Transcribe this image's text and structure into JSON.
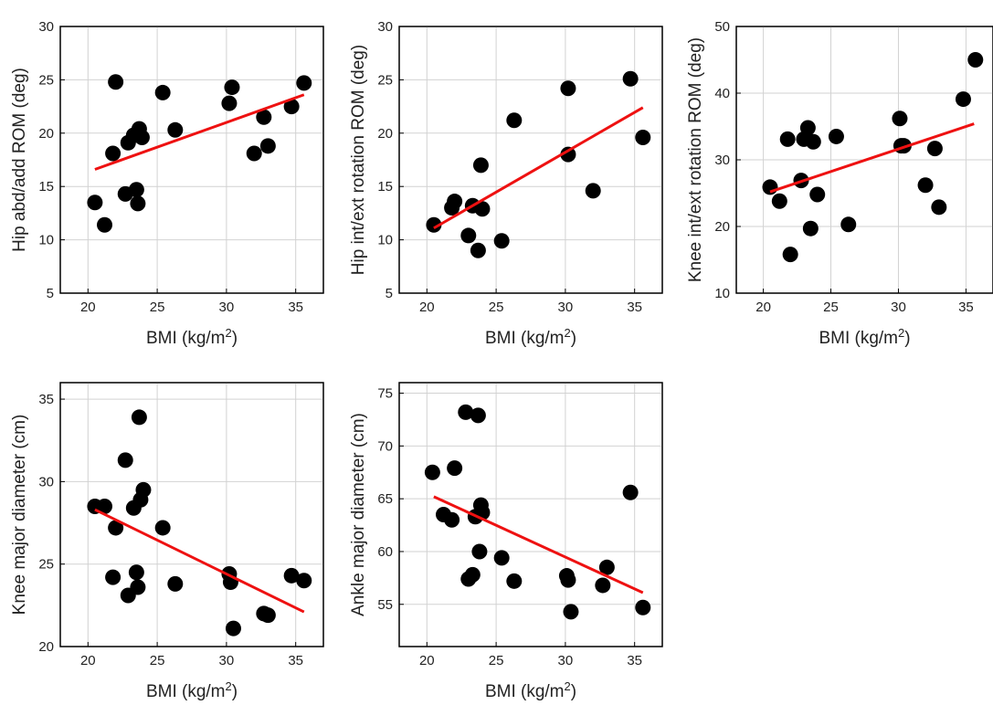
{
  "style": {
    "point_color": "#000000",
    "fit_color": "#ee1111",
    "grid_color": "#d2d2d2"
  },
  "chart_data": [
    {
      "type": "scatter",
      "xlabel": "BMI (kg/m",
      "xlabel_sup": "2",
      "xlabel_tail": ")",
      "ylabel": "Hip abd/add ROM (deg)",
      "xlim": [
        18,
        37
      ],
      "ylim": [
        5,
        30
      ],
      "xticks": [
        20,
        25,
        30,
        35
      ],
      "yticks": [
        5,
        10,
        15,
        20,
        25,
        30
      ],
      "grid": true,
      "points": [
        [
          20.5,
          13.5
        ],
        [
          21.2,
          11.4
        ],
        [
          21.8,
          18.1
        ],
        [
          22.0,
          24.8
        ],
        [
          22.7,
          14.3
        ],
        [
          22.9,
          19.1
        ],
        [
          23.3,
          19.8
        ],
        [
          23.5,
          14.7
        ],
        [
          23.6,
          13.4
        ],
        [
          23.7,
          20.4
        ],
        [
          23.9,
          19.6
        ],
        [
          25.4,
          23.8
        ],
        [
          26.3,
          20.3
        ],
        [
          30.2,
          22.8
        ],
        [
          30.4,
          24.3
        ],
        [
          32.0,
          18.1
        ],
        [
          32.7,
          21.5
        ],
        [
          33.0,
          18.8
        ],
        [
          34.7,
          22.5
        ],
        [
          35.6,
          24.7
        ]
      ],
      "fit": [
        [
          20.5,
          16.6
        ],
        [
          35.6,
          23.6
        ]
      ]
    },
    {
      "type": "scatter",
      "xlabel": "BMI (kg/m",
      "xlabel_sup": "2",
      "xlabel_tail": ")",
      "ylabel": "Hip int/ext rotation ROM (deg)",
      "xlim": [
        18,
        37
      ],
      "ylim": [
        5,
        30
      ],
      "xticks": [
        20,
        25,
        30,
        35
      ],
      "yticks": [
        5,
        10,
        15,
        20,
        25,
        30
      ],
      "grid": true,
      "points": [
        [
          20.5,
          11.4
        ],
        [
          21.8,
          13.0
        ],
        [
          22.0,
          13.6
        ],
        [
          23.0,
          10.4
        ],
        [
          23.3,
          13.2
        ],
        [
          23.7,
          9.0
        ],
        [
          23.9,
          17.0
        ],
        [
          24.0,
          12.9
        ],
        [
          25.4,
          9.9
        ],
        [
          26.3,
          21.2
        ],
        [
          30.2,
          24.2
        ],
        [
          30.2,
          18.0
        ],
        [
          32.0,
          14.6
        ],
        [
          34.7,
          25.1
        ],
        [
          35.6,
          19.6
        ]
      ],
      "fit": [
        [
          20.5,
          11.1
        ],
        [
          35.6,
          22.4
        ]
      ]
    },
    {
      "type": "scatter",
      "xlabel": "BMI (kg/m",
      "xlabel_sup": "2",
      "xlabel_tail": ")",
      "ylabel": "Knee int/ext rotation ROM (deg)",
      "xlim": [
        18,
        37
      ],
      "ylim": [
        10,
        50
      ],
      "xticks": [
        20,
        25,
        30,
        35
      ],
      "yticks": [
        10,
        20,
        30,
        40,
        50
      ],
      "grid": true,
      "points": [
        [
          20.5,
          25.9
        ],
        [
          21.2,
          23.8
        ],
        [
          21.8,
          33.1
        ],
        [
          22.0,
          15.8
        ],
        [
          22.8,
          26.9
        ],
        [
          23.0,
          33.1
        ],
        [
          23.3,
          34.8
        ],
        [
          23.5,
          19.7
        ],
        [
          23.7,
          32.7
        ],
        [
          24.0,
          24.8
        ],
        [
          25.4,
          33.5
        ],
        [
          26.3,
          20.3
        ],
        [
          30.1,
          36.2
        ],
        [
          30.2,
          32.1
        ],
        [
          30.4,
          32.1
        ],
        [
          32.0,
          26.2
        ],
        [
          32.7,
          31.7
        ],
        [
          33.0,
          22.9
        ],
        [
          34.8,
          39.1
        ],
        [
          35.7,
          45.0
        ]
      ],
      "fit": [
        [
          20.5,
          25.2
        ],
        [
          35.6,
          35.4
        ]
      ]
    },
    {
      "type": "scatter",
      "xlabel": "BMI (kg/m",
      "xlabel_sup": "2",
      "xlabel_tail": ")",
      "ylabel": "Knee major diameter  (cm)",
      "xlim": [
        18,
        37
      ],
      "ylim": [
        20,
        36
      ],
      "xticks": [
        20,
        25,
        30,
        35
      ],
      "yticks": [
        20,
        25,
        30,
        35
      ],
      "grid": true,
      "points": [
        [
          20.5,
          28.5
        ],
        [
          21.2,
          28.5
        ],
        [
          21.8,
          24.2
        ],
        [
          22.0,
          27.2
        ],
        [
          22.7,
          31.3
        ],
        [
          22.9,
          23.1
        ],
        [
          23.3,
          28.4
        ],
        [
          23.5,
          24.5
        ],
        [
          23.6,
          23.6
        ],
        [
          23.7,
          33.9
        ],
        [
          23.8,
          28.9
        ],
        [
          24.0,
          29.5
        ],
        [
          25.4,
          27.2
        ],
        [
          26.3,
          23.8
        ],
        [
          30.2,
          24.4
        ],
        [
          30.3,
          23.9
        ],
        [
          30.5,
          21.1
        ],
        [
          32.7,
          22.0
        ],
        [
          33.0,
          21.9
        ],
        [
          34.7,
          24.3
        ],
        [
          35.6,
          24.0
        ]
      ],
      "fit": [
        [
          20.5,
          28.3
        ],
        [
          35.6,
          22.1
        ]
      ]
    },
    {
      "type": "scatter",
      "xlabel": "BMI (kg/m",
      "xlabel_sup": "2",
      "xlabel_tail": ")",
      "ylabel": "Ankle major diameter (cm)",
      "xlim": [
        18,
        37
      ],
      "ylim": [
        51,
        76
      ],
      "xticks": [
        20,
        25,
        30,
        35
      ],
      "yticks": [
        55,
        60,
        65,
        70,
        75
      ],
      "grid": true,
      "points": [
        [
          20.4,
          67.5
        ],
        [
          21.2,
          63.5
        ],
        [
          21.8,
          63.0
        ],
        [
          22.0,
          67.9
        ],
        [
          22.8,
          73.2
        ],
        [
          23.0,
          57.4
        ],
        [
          23.3,
          57.8
        ],
        [
          23.5,
          63.3
        ],
        [
          23.7,
          72.9
        ],
        [
          23.8,
          60.0
        ],
        [
          23.9,
          64.4
        ],
        [
          24.0,
          63.7
        ],
        [
          25.4,
          59.4
        ],
        [
          26.3,
          57.2
        ],
        [
          30.1,
          57.7
        ],
        [
          30.2,
          57.3
        ],
        [
          30.4,
          54.3
        ],
        [
          32.7,
          56.8
        ],
        [
          33.0,
          58.5
        ],
        [
          34.7,
          65.6
        ],
        [
          35.6,
          54.7
        ]
      ],
      "fit": [
        [
          20.5,
          65.2
        ],
        [
          35.6,
          56.1
        ]
      ]
    }
  ]
}
